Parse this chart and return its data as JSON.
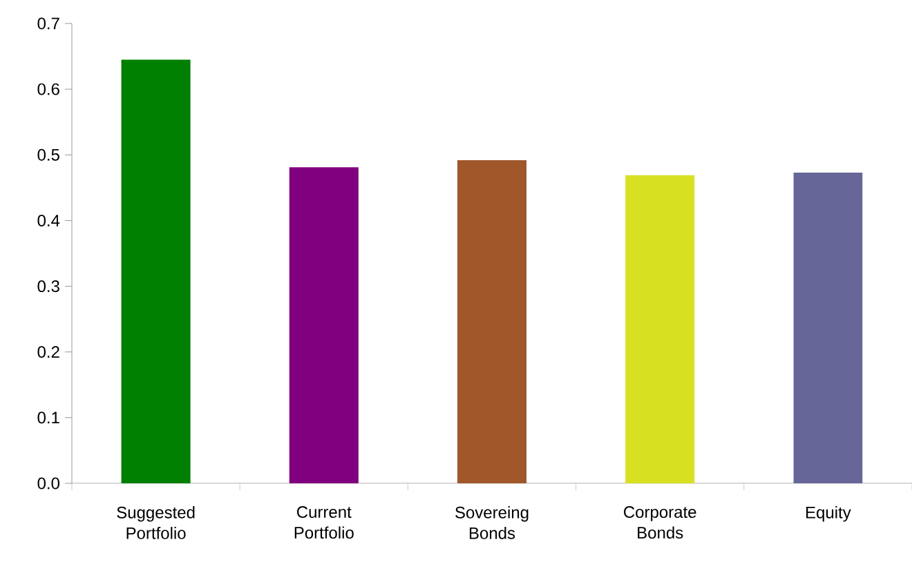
{
  "chart_data": {
    "type": "bar",
    "categories": [
      "Suggested Portfolio",
      "Current Portfolio",
      "Sovereing Bonds",
      "Corporate Bonds",
      "Equity"
    ],
    "values": [
      0.645,
      0.481,
      0.492,
      0.469,
      0.473
    ],
    "colors": [
      "#008000",
      "#800080",
      "#a0582a",
      "#d7e021",
      "#666699"
    ],
    "ylim": [
      0,
      0.7
    ],
    "yticks": [
      {
        "value": 0,
        "label": "0.0"
      },
      {
        "value": 0.1,
        "label": "0.1"
      },
      {
        "value": 0.2,
        "label": "0.2"
      },
      {
        "value": 0.3,
        "label": "0.3"
      },
      {
        "value": 0.4,
        "label": "0.4"
      },
      {
        "value": 0.5,
        "label": "0.5"
      },
      {
        "value": 0.6,
        "label": "0.6"
      },
      {
        "value": 0.7,
        "label": "0.7"
      }
    ],
    "grid": false
  }
}
